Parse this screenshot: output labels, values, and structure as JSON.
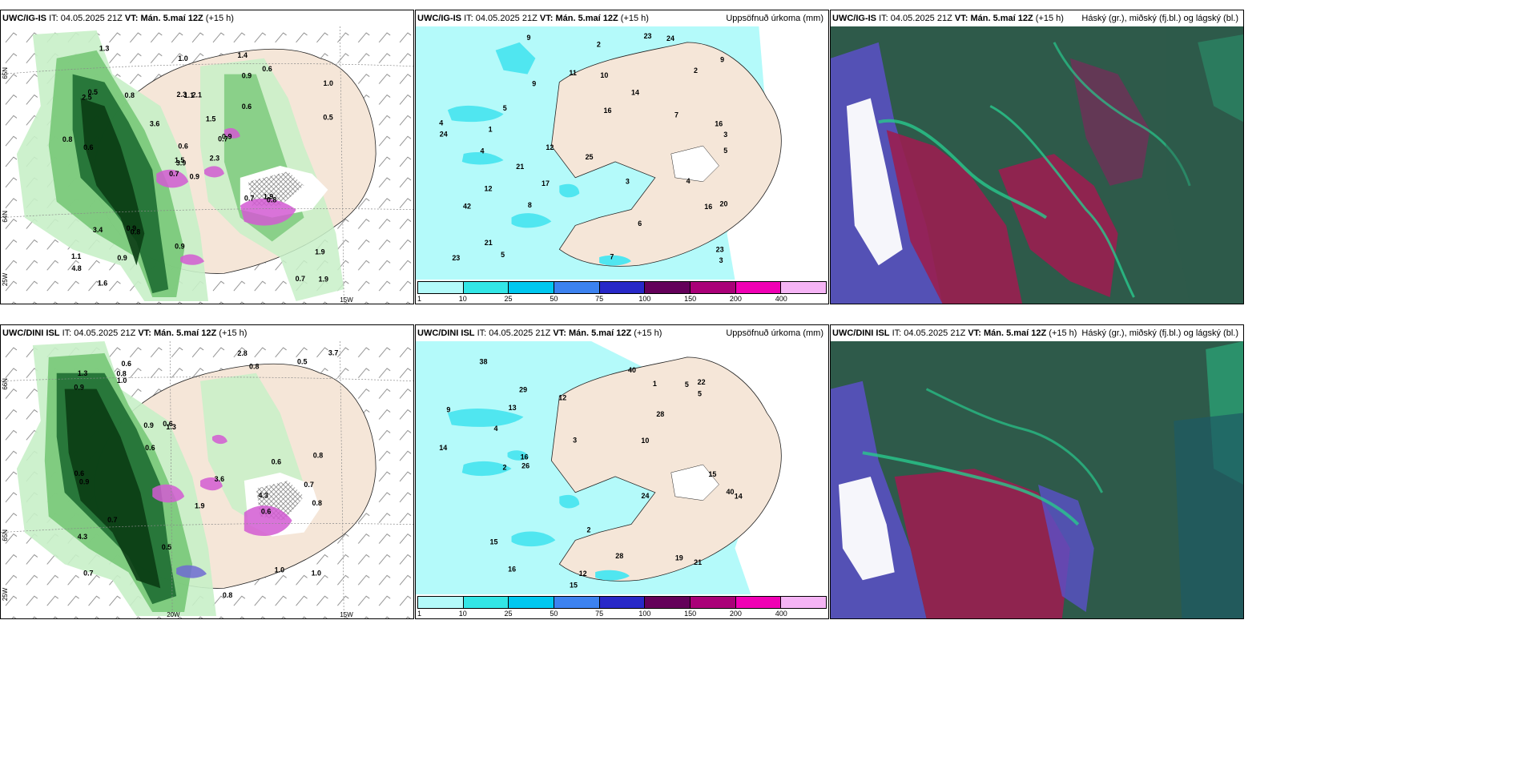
{
  "rows": [
    {
      "model": "UWC/IG-IS",
      "it_label": "IT:",
      "it_value": "04.05.2025 21Z",
      "vt_label": "VT:",
      "vt_value": "Mán. 5.maí 12Z",
      "lead": "(+15 h)",
      "wind_coords": {
        "lat_top": "65N",
        "lat_mid": "64N",
        "lon_left": "25W",
        "lon_bottom": "15W"
      },
      "wind_labels": [
        "0.9",
        "2.5",
        "3.9",
        "1.1",
        "0.7",
        "0.8",
        "1.4",
        "2.1",
        "0.9",
        "2.3",
        "1.3",
        "1.9",
        "0.6",
        "1.0",
        "0.7",
        "0.6",
        "1.6",
        "2.3",
        "1.5",
        "3.4",
        "3.6",
        "4.8",
        "0.9",
        "1.1",
        "0.9",
        "0.8",
        "0.5",
        "1.0",
        "0.8",
        "0.7",
        "0.5",
        "1.5",
        "0.9",
        "0.6",
        "0.8",
        "0.6",
        "0.9",
        "0.7",
        "1.9",
        "1.9"
      ],
      "precip_labels": [
        "9",
        "16",
        "14",
        "3",
        "12",
        "20",
        "17",
        "23",
        "16",
        "2",
        "5",
        "4",
        "7",
        "8",
        "42",
        "25",
        "21",
        "4",
        "9",
        "11",
        "23",
        "10",
        "21",
        "12",
        "16",
        "24",
        "23",
        "6",
        "7",
        "9",
        "5",
        "3",
        "4",
        "2",
        "1",
        "24",
        "5",
        "3"
      ],
      "cloud_title": "Háský (gr.), miðský (fj.bl.) og lágský (bl.)"
    },
    {
      "model": "UWC/DINI ISL",
      "it_label": "IT:",
      "it_value": "04.05.2025 21Z",
      "vt_label": "VT:",
      "vt_value": "Mán. 5.maí 12Z",
      "lead": "(+15 h)",
      "wind_coords": {
        "lat_top": "66N",
        "lat_mid": "65N",
        "lon_left": "25W",
        "lon_bottom": "15W",
        "lon_bottom2": "20W"
      },
      "wind_labels": [
        "4.3",
        "0.7",
        "0.7",
        "0.6",
        "1.3",
        "1.0",
        "4.3",
        "0.8",
        "0.9",
        "0.8",
        "0.9",
        "0.6",
        "1.3",
        "1.0",
        "0.5",
        "0.8",
        "1.9",
        "3.6",
        "0.6",
        "0.7",
        "3.7",
        "0.5",
        "0.6",
        "0.8",
        "2.8",
        "0.8",
        "0.6",
        "0.9",
        "1.0",
        "0.6"
      ],
      "precip_labels": [
        "9",
        "13",
        "10",
        "12",
        "5",
        "15",
        "24",
        "26",
        "22",
        "14",
        "40",
        "29",
        "28",
        "15",
        "14",
        "16",
        "16",
        "12",
        "21",
        "28",
        "19",
        "15",
        "3",
        "2",
        "1",
        "4",
        "5",
        "40",
        "38",
        "2"
      ],
      "cloud_title": "Háský (gr.), miðský (fj.bl.) og lágský (bl.)"
    }
  ],
  "precip_title": "Uppsöfnuð úrkoma (mm)",
  "colorbar": {
    "ticks": [
      "1",
      "10",
      "25",
      "50",
      "75",
      "100",
      "150",
      "200",
      "400"
    ],
    "colors": [
      "#b3fafa",
      "#33e6e6",
      "#00c8f0",
      "#3c82f0",
      "#2828c8",
      "#64005a",
      "#aa0078",
      "#f000b4",
      "#f5b4f5"
    ]
  },
  "colors": {
    "land": "#f5e6d8",
    "sea": "#ffffff",
    "green_light": "#c8f0c8",
    "green_mid": "#78c878",
    "green_dark": "#1e6e32",
    "green_darkest": "#0a3c14",
    "pink": "#d25ad2",
    "cyan_light": "#b4fafa",
    "cyan_mid": "#50e6f0",
    "cloud_bg": "#2e5a4a",
    "cloud_red": "#9a1e50",
    "cloud_blue": "#5a50c8",
    "cloud_green": "#28c88c"
  }
}
